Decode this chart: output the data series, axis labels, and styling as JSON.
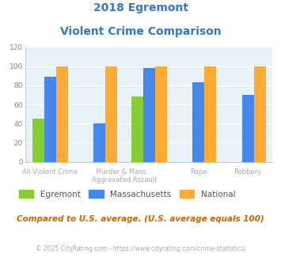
{
  "title_line1": "2018 Egremont",
  "title_line2": "Violent Crime Comparison",
  "title_color": "#3377cc",
  "egremont_vals": [
    45,
    0,
    68,
    0,
    0
  ],
  "massachusetts_vals": [
    89,
    40,
    98,
    83,
    70
  ],
  "national_vals": [
    100,
    100,
    100,
    100,
    100
  ],
  "egremont_color": "#88cc33",
  "massachusetts_color": "#4488ee",
  "national_color": "#ffaa33",
  "ylim": [
    0,
    120
  ],
  "yticks": [
    0,
    20,
    40,
    60,
    80,
    100,
    120
  ],
  "plot_bg": "#e6f2f8",
  "label_color": "#aaaaaa",
  "label_upper": [
    "",
    "Murder & Mans...",
    "",
    "",
    ""
  ],
  "label_lower": [
    "All Violent Crime",
    "",
    "Aggravated Assault",
    "Rape",
    "Robbery"
  ],
  "footnote": "Compared to U.S. average. (U.S. average equals 100)",
  "footnote_color": "#cc6600",
  "copyright": "© 2025 CityRating.com - https://www.cityrating.com/crime-statistics/",
  "copyright_color": "#aaaaaa",
  "legend_labels": [
    "Egremont",
    "Massachusetts",
    "National"
  ],
  "legend_text_color": "#555555"
}
